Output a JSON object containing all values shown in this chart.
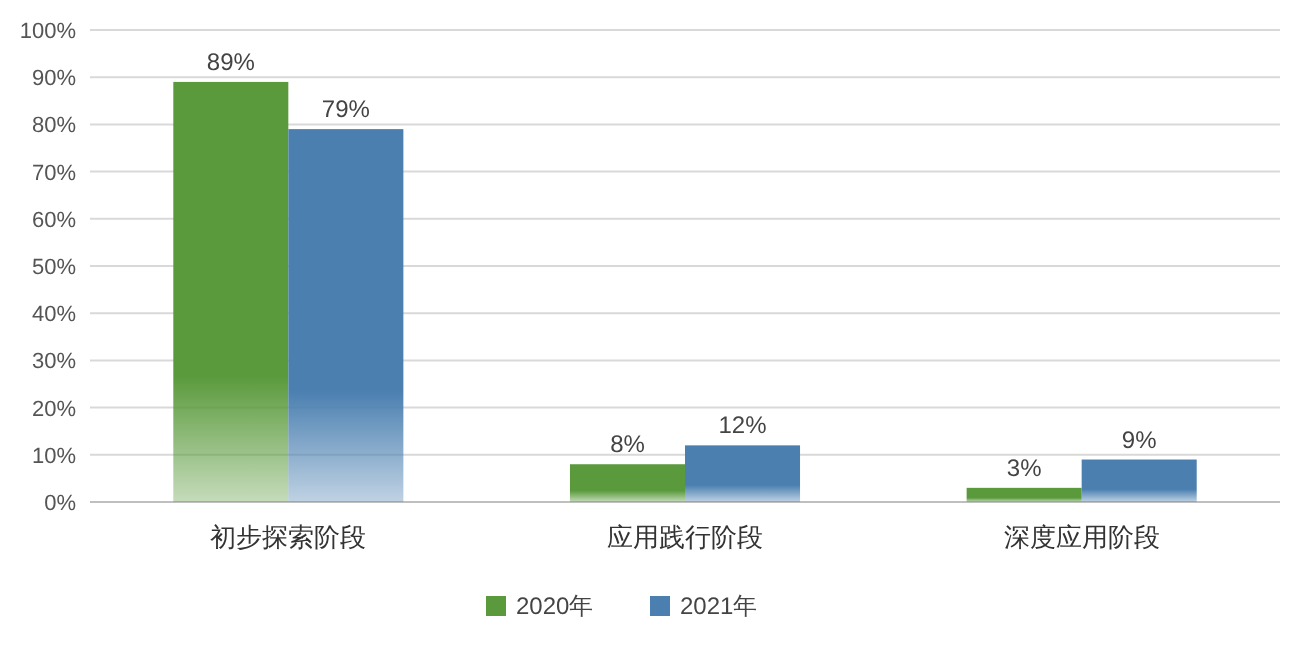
{
  "chart_data": {
    "type": "bar",
    "categories": [
      "初步探索阶段",
      "应用践行阶段",
      "深度应用阶段"
    ],
    "series": [
      {
        "name": "2020年",
        "color": "#5a9a3c",
        "values": [
          89,
          8,
          3
        ],
        "value_labels": [
          "89%",
          "8%",
          "3%"
        ]
      },
      {
        "name": "2021年",
        "color": "#4a7fb0",
        "values": [
          79,
          12,
          9
        ],
        "value_labels": [
          "79%",
          "12%",
          "9%"
        ]
      }
    ],
    "ylim": [
      0,
      100
    ],
    "yticks": [
      {
        "value": 0,
        "label": "0%"
      },
      {
        "value": 10,
        "label": "10%"
      },
      {
        "value": 20,
        "label": "20%"
      },
      {
        "value": 30,
        "label": "30%"
      },
      {
        "value": 40,
        "label": "40%"
      },
      {
        "value": 50,
        "label": "50%"
      },
      {
        "value": 60,
        "label": "60%"
      },
      {
        "value": 70,
        "label": "70%"
      },
      {
        "value": 80,
        "label": "80%"
      },
      {
        "value": 90,
        "label": "90%"
      },
      {
        "value": 100,
        "label": "100%"
      }
    ],
    "grid": "y",
    "legend": "bottom"
  }
}
